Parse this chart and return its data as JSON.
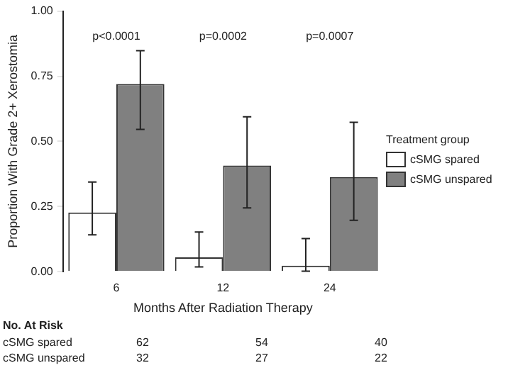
{
  "chart_data": {
    "type": "bar",
    "categories": [
      "6",
      "12",
      "24"
    ],
    "xlabel": "Months After Radiation Therapy",
    "ylabel": "Proportion With Grade 2+ Xerostomia",
    "legend_title": "Treatment group",
    "legend": "right",
    "grid": false,
    "ylim": [
      0,
      1
    ],
    "yticks": [
      {
        "value": 0,
        "label": "0.00"
      },
      {
        "value": 0.25,
        "label": "0.25"
      },
      {
        "value": 0.5,
        "label": "0.50"
      },
      {
        "value": 0.75,
        "label": "0.75"
      },
      {
        "value": 1,
        "label": "1.00"
      }
    ],
    "series": [
      {
        "name": "cSMG spared",
        "color": "#ffffff",
        "values": [
          0.227,
          0.055,
          0.023
        ],
        "errors": [
          [
            0.141,
            0.344
          ],
          [
            0.018,
            0.152
          ],
          [
            0.002,
            0.127
          ]
        ]
      },
      {
        "name": "cSMG unspared",
        "color": "#808080",
        "values": [
          0.72,
          0.407,
          0.363
        ],
        "errors": [
          [
            0.546,
            0.848
          ],
          [
            0.245,
            0.594
          ],
          [
            0.197,
            0.573
          ]
        ]
      }
    ],
    "annotations": [
      "p<0.0001",
      "p=0.0002",
      "p=0.0007",
      "No. At Risk",
      "cSMG spared",
      "62",
      "54",
      "40",
      "cSMG unspared",
      "32",
      "27",
      "22"
    ]
  }
}
